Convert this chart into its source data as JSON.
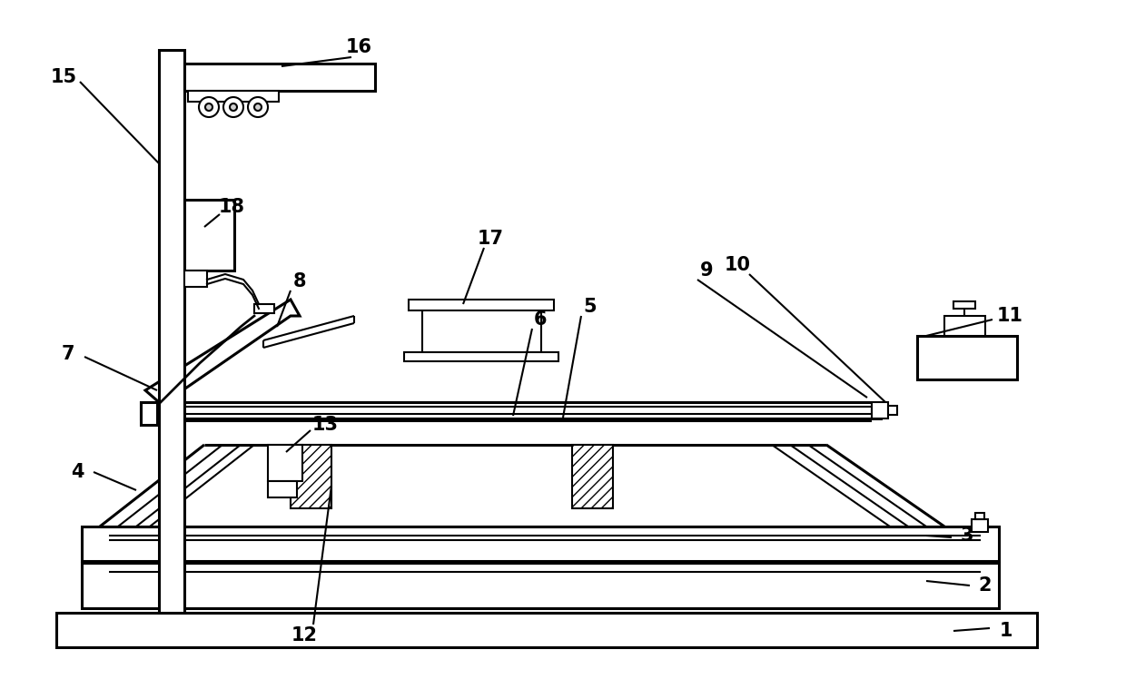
{
  "bg_color": "#ffffff",
  "lc": "#000000",
  "lw": 1.5,
  "tlw": 2.2,
  "fig_w": 12.4,
  "fig_h": 7.48
}
